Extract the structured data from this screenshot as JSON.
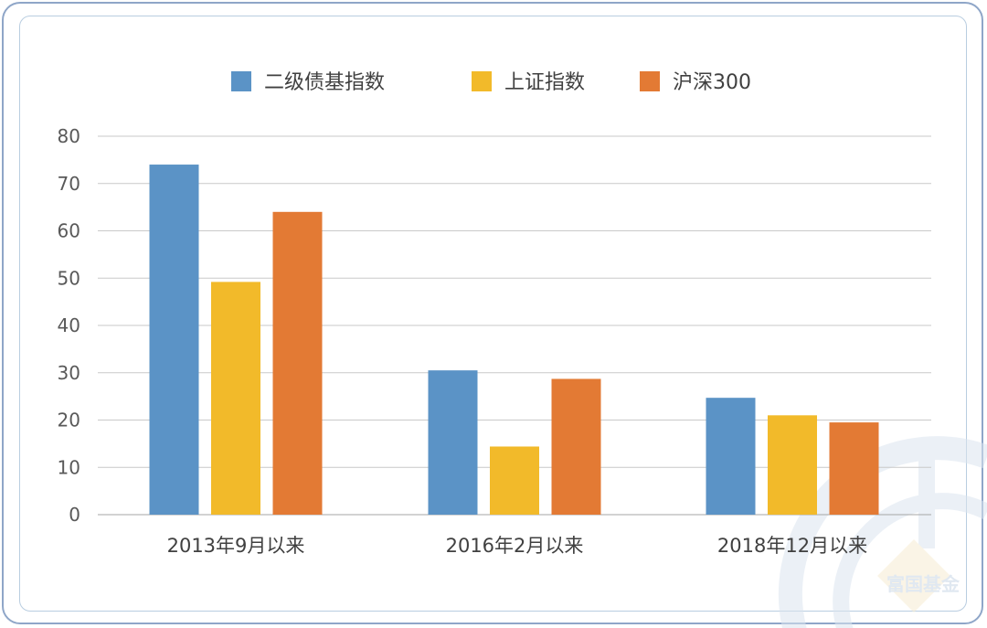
{
  "chart_data": {
    "type": "bar",
    "categories": [
      "2013年9月以来",
      "2016年2月以来",
      "2018年12月以来"
    ],
    "series": [
      {
        "name": "二级债基指数",
        "values": [
          74,
          30.5,
          24.7
        ],
        "color": "#5b93c6"
      },
      {
        "name": "上证指数",
        "values": [
          49.2,
          14.4,
          21
        ],
        "color": "#f2ba2a"
      },
      {
        "name": "沪深300",
        "values": [
          64,
          28.7,
          19.5
        ],
        "color": "#e37a34"
      }
    ],
    "ylim": [
      0,
      80
    ],
    "yticks": [
      0,
      10,
      20,
      30,
      40,
      50,
      60,
      70,
      80
    ],
    "grid": true,
    "legend_position": "top-center",
    "title": "",
    "xlabel": "",
    "ylabel": ""
  },
  "watermark": {
    "text": "富国基金",
    "icon": "fullgoal-logo-icon"
  }
}
